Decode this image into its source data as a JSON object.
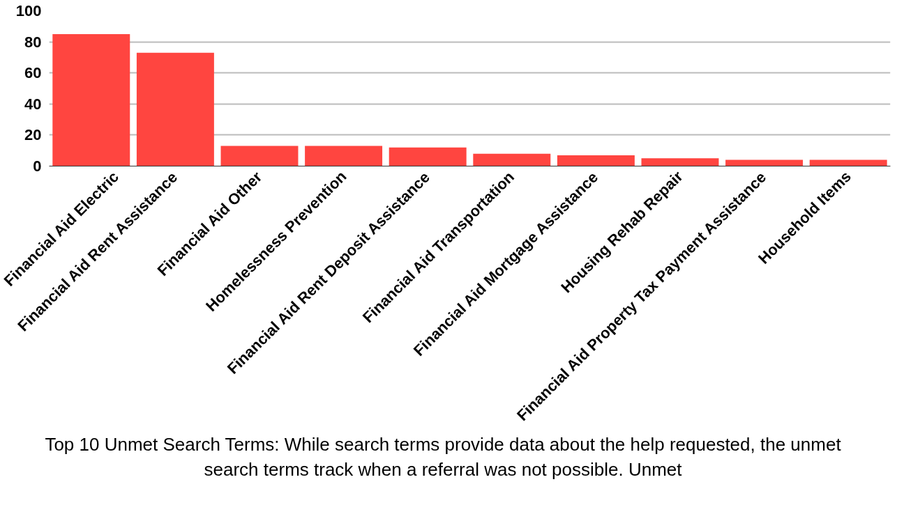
{
  "chart_data": {
    "type": "bar",
    "categories": [
      "Financial Aid Electric",
      "Financial Aid Rent Assistance",
      "Financial Aid Other",
      "Homelessness Prevention",
      "Financial Aid Rent Deposit Assistance",
      "Financial Aid Transportation",
      "Financial Aid Mortgage Assistance",
      "Housing Rehab Repair",
      "Financial Aid Property Tax Payment Assistance",
      "Household Items"
    ],
    "values": [
      85,
      73,
      13,
      13,
      12,
      8,
      7,
      5,
      4,
      4
    ],
    "color": "#ff4540",
    "ylim": [
      0,
      100
    ],
    "yticks": [
      0,
      20,
      40,
      60,
      80,
      100
    ],
    "grid": "y",
    "annotations": [
      "Top 10 Unmet Search Terms: While search terms provide data about the help requested, the unmet search terms track when a referral was not possible. Unmet"
    ]
  }
}
